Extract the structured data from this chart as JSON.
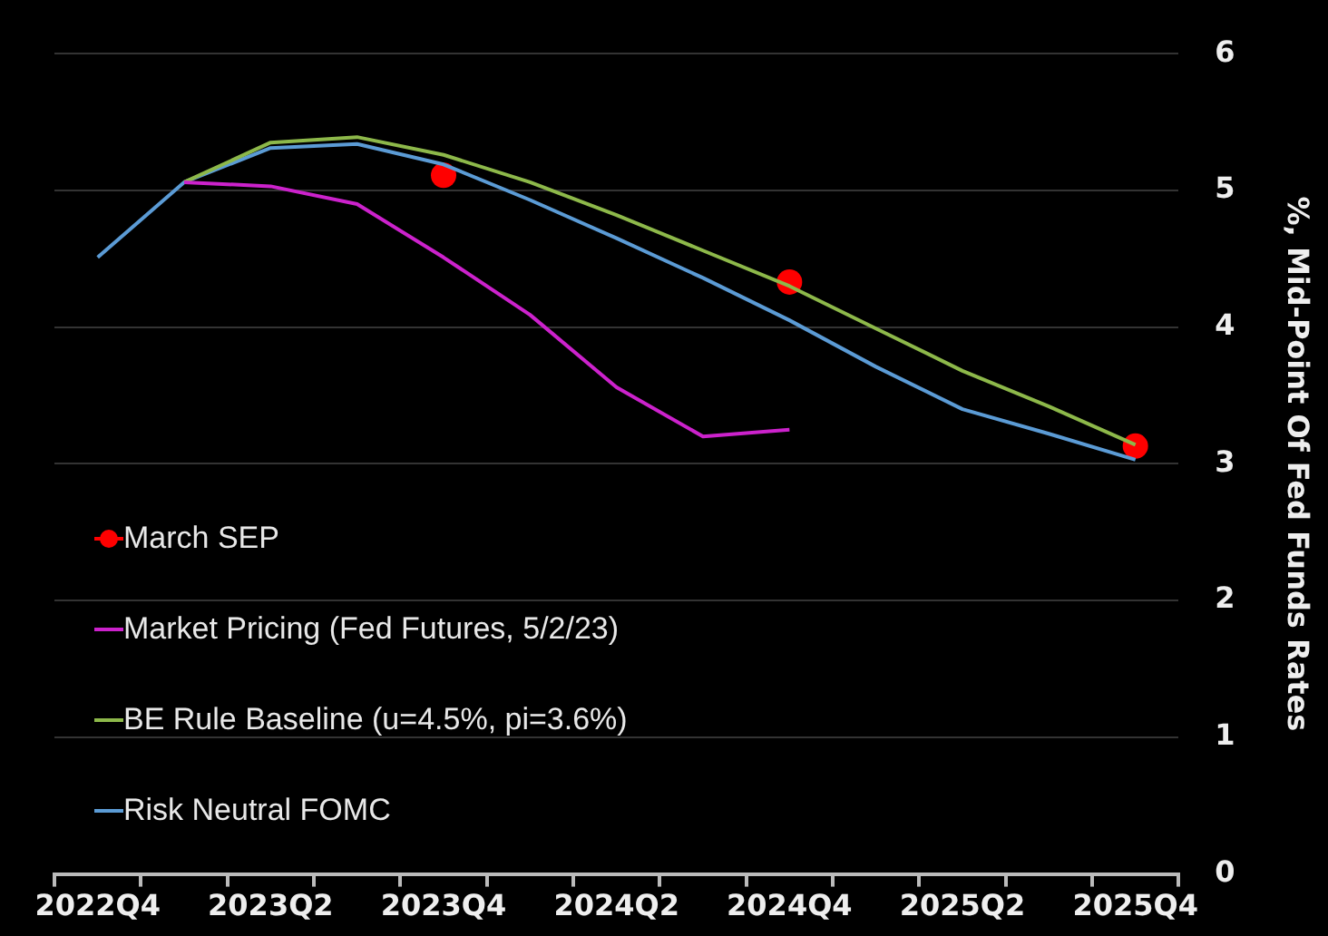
{
  "chart_data": {
    "type": "line",
    "categories": [
      "2022Q4",
      null,
      "2023Q2",
      null,
      "2023Q4",
      null,
      "2024Q2",
      null,
      "2024Q4",
      null,
      "2025Q2",
      null,
      "2025Q4"
    ],
    "series": [
      {
        "name": "March SEP",
        "type": "scatter",
        "color": "#ff0000",
        "marker": "circle",
        "values": [
          null,
          null,
          null,
          null,
          5.11,
          null,
          null,
          null,
          4.33,
          null,
          null,
          null,
          3.13
        ]
      },
      {
        "name": "Market Pricing (Fed Futures, 5/2/23)",
        "color": "#cc22cc",
        "values": [
          null,
          5.06,
          5.03,
          4.9,
          4.51,
          4.09,
          3.56,
          3.2,
          3.25,
          null,
          null,
          null,
          null
        ]
      },
      {
        "name": "BE Rule Baseline (u=4.5%, pi=3.6%)",
        "color": "#8db84a",
        "values": [
          null,
          5.06,
          5.35,
          5.39,
          5.26,
          5.06,
          4.82,
          4.56,
          4.3,
          3.99,
          3.68,
          3.42,
          3.14
        ]
      },
      {
        "name": "Risk Neutral FOMC",
        "color": "#5b9bd5",
        "values": [
          4.51,
          5.06,
          5.31,
          5.34,
          5.19,
          4.93,
          4.65,
          4.36,
          4.05,
          3.71,
          3.4,
          3.22,
          3.03
        ]
      }
    ],
    "ylabel": "%, Mid-Point Of Fed Funds Rates",
    "ylim": [
      0,
      6
    ],
    "yticks": [
      0,
      1,
      2,
      3,
      4,
      5,
      6
    ],
    "grid": "y",
    "legend": "bottom left",
    "marker": "none",
    "line_style": "solid"
  }
}
